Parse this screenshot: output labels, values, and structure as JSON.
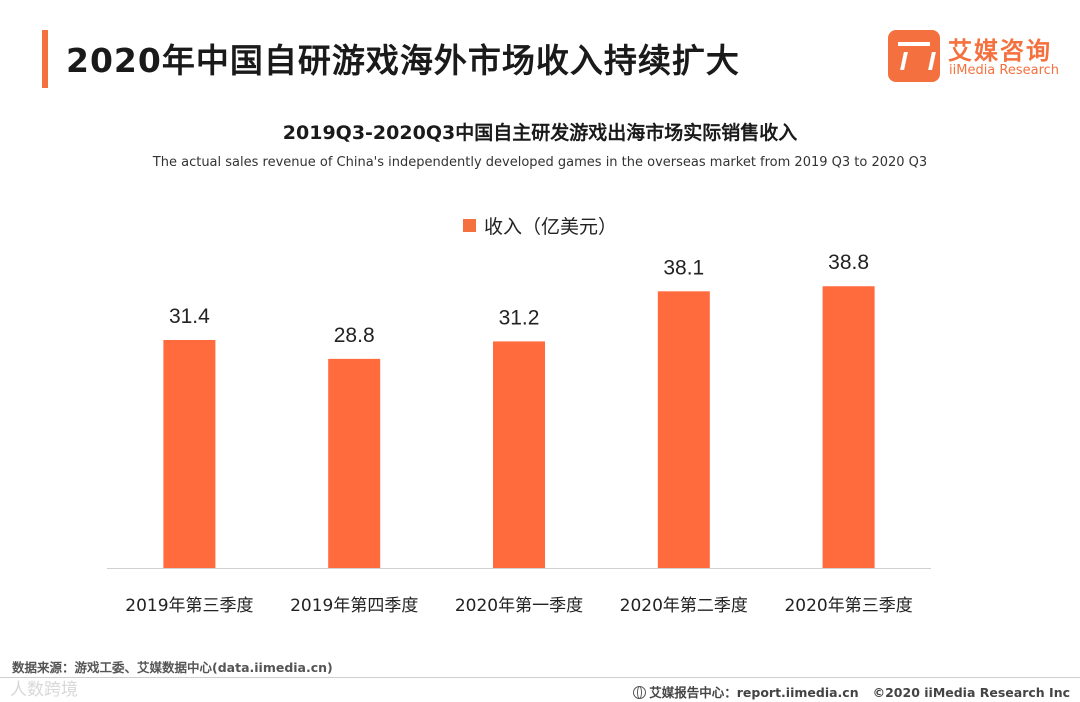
{
  "header": {
    "title": "2020年中国自研游戏海外市场收入持续扩大",
    "logo_cn": "艾媒咨询",
    "logo_en": "iiMedia Research"
  },
  "colors": {
    "accent": "#f4703e",
    "bar": "#ff6b3d"
  },
  "chart_data": {
    "type": "bar",
    "title": "2019Q3-2020Q3中国自主研发游戏出海市场实际销售收入",
    "subtitle": "The actual sales revenue of China's independently developed games in the overseas market from 2019 Q3 to 2020 Q3",
    "categories": [
      "2019年第三季度",
      "2019年第四季度",
      "2020年第一季度",
      "2020年第二季度",
      "2020年第三季度"
    ],
    "series": [
      {
        "name": "收入（亿美元）",
        "values": [
          31.4,
          28.8,
          31.2,
          38.1,
          38.8
        ]
      }
    ],
    "ylim": [
      0,
      42
    ],
    "xlabel": "",
    "ylabel": "",
    "grid": false,
    "legend": "top-center"
  },
  "footer": {
    "source": "数据来源：游戏工委、艾媒数据中心(data.iimedia.cn)",
    "watermark": "人数跨境",
    "report_label": "艾媒报告中心：report.iimedia.cn",
    "copyright": "©2020  iiMedia Research  Inc"
  }
}
